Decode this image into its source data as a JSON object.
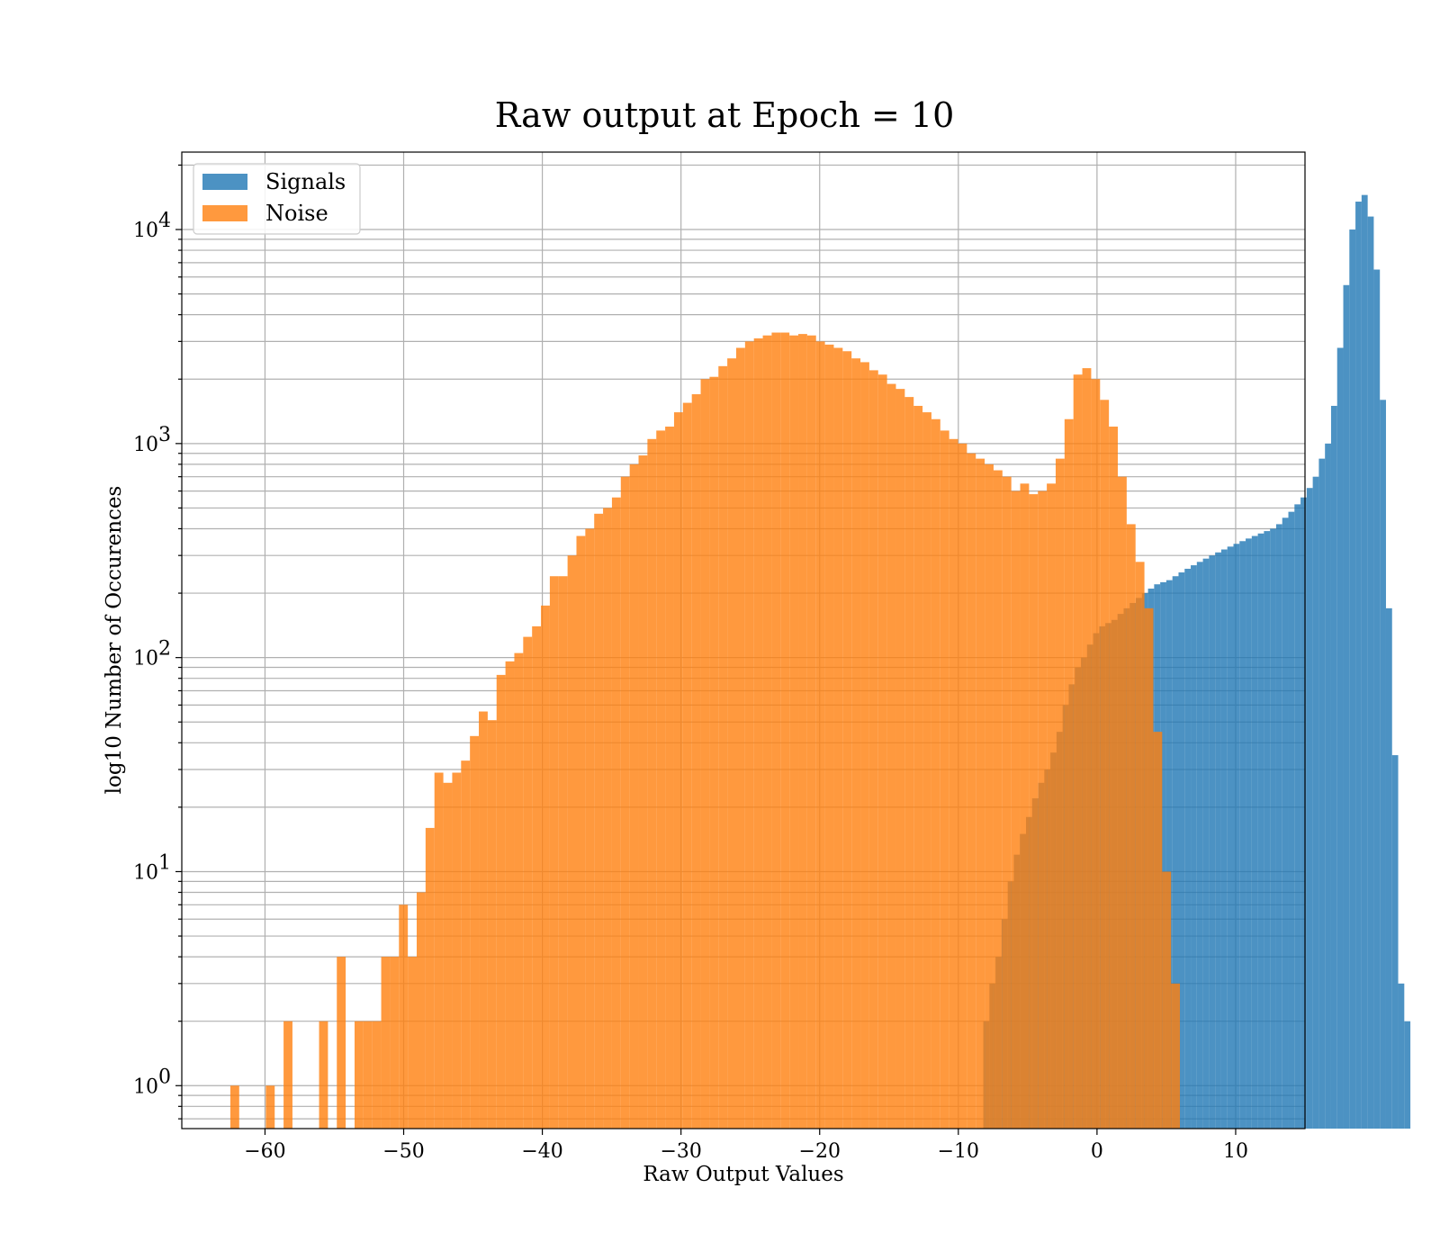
{
  "chart_data": {
    "type": "bar",
    "title": "Raw output at Epoch = 10",
    "xlabel": "Raw Output Values",
    "ylabel": "log10 Number of Occurences",
    "xlim": [
      -66,
      15
    ],
    "ylim": [
      0.63,
      23000
    ],
    "yscale": "log",
    "grid": true,
    "grid_minor": true,
    "legend": "top-left",
    "xticks": [
      {
        "value": -60,
        "label": "−60"
      },
      {
        "value": -50,
        "label": "−50"
      },
      {
        "value": -40,
        "label": "−40"
      },
      {
        "value": -30,
        "label": "−30"
      },
      {
        "value": -20,
        "label": "−20"
      },
      {
        "value": -10,
        "label": "−10"
      },
      {
        "value": 0,
        "label": "0"
      },
      {
        "value": 10,
        "label": "10"
      }
    ],
    "yticks": [
      {
        "value": 1,
        "base": "10",
        "exp": "0"
      },
      {
        "value": 10,
        "base": "10",
        "exp": "1"
      },
      {
        "value": 100,
        "base": "10",
        "exp": "2"
      },
      {
        "value": 1000,
        "base": "10",
        "exp": "3"
      },
      {
        "value": 10000,
        "base": "10",
        "exp": "4"
      }
    ],
    "series": [
      {
        "name": "Signals",
        "color": "#1f77b4",
        "opacity": 0.8,
        "bin_start": -8.2,
        "bin_width": 0.44,
        "counts": [
          2,
          3,
          4,
          6,
          9,
          12,
          15,
          18,
          22,
          26,
          30,
          36,
          45,
          60,
          75,
          90,
          100,
          115,
          130,
          140,
          145,
          150,
          160,
          170,
          180,
          190,
          200,
          210,
          220,
          225,
          230,
          240,
          250,
          260,
          270,
          280,
          290,
          300,
          310,
          320,
          330,
          340,
          350,
          360,
          370,
          380,
          390,
          400,
          420,
          450,
          480,
          520,
          560,
          620,
          700,
          850,
          1000,
          1500,
          2800,
          5500,
          10000,
          13500,
          14500,
          11500,
          6500,
          1600,
          170,
          35,
          3,
          2
        ]
      },
      {
        "name": "Noise",
        "color": "#ff7f0e",
        "opacity": 0.8,
        "bin_start": -62.5,
        "bin_width": 0.64,
        "counts": [
          1,
          0,
          0,
          0,
          1,
          0,
          2,
          0,
          0,
          0,
          2,
          0,
          4,
          0,
          2,
          2,
          2,
          4,
          4,
          7,
          4,
          8,
          16,
          29,
          26,
          29,
          33,
          43,
          56,
          51,
          83,
          96,
          105,
          125,
          140,
          175,
          240,
          240,
          300,
          370,
          400,
          470,
          500,
          560,
          700,
          800,
          880,
          1050,
          1150,
          1200,
          1400,
          1550,
          1700,
          2000,
          2050,
          2300,
          2500,
          2800,
          3000,
          3100,
          3200,
          3300,
          3300,
          3200,
          3250,
          3200,
          3000,
          2900,
          2800,
          2700,
          2500,
          2400,
          2200,
          2100,
          1900,
          1800,
          1650,
          1500,
          1400,
          1300,
          1150,
          1050,
          1000,
          900,
          850,
          800,
          750,
          700,
          600,
          650,
          580,
          600,
          650,
          850,
          1300,
          2100,
          2250,
          2000,
          1600,
          1200,
          700,
          420,
          280,
          170,
          45,
          10,
          3
        ]
      }
    ]
  }
}
